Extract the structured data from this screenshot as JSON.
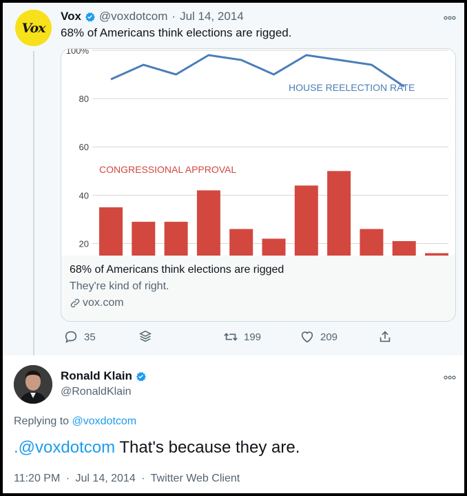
{
  "tweet1": {
    "author_name": "Vox",
    "handle": "@voxdotcom",
    "separator": "·",
    "date": "Jul 14, 2014",
    "avatar_text": "Vox",
    "text": "68% of Americans think elections are rigged.",
    "card": {
      "title": "68% of Americans think elections are rigged",
      "description": "They're kind of right.",
      "domain": "vox.com"
    },
    "actions": {
      "replies": "35",
      "retweets": "199",
      "likes": "209"
    }
  },
  "chart_data": {
    "type": "bar",
    "y_tick_labels": [
      "20",
      "40",
      "60",
      "80",
      "100%"
    ],
    "ylim": [
      15,
      100
    ],
    "bar_series_label": "CONGRESSIONAL APPROVAL",
    "bar_values": [
      35,
      29,
      29,
      42,
      26,
      22,
      44,
      50,
      26,
      21,
      16
    ],
    "line_series_label": "HOUSE REELECTION RATE",
    "line_values": [
      88,
      94,
      90,
      98,
      96,
      90,
      98,
      96,
      94,
      85
    ],
    "colors": {
      "bar": "#d2483f",
      "line": "#4a7db8",
      "grid": "#d6d6d6"
    }
  },
  "tweet2": {
    "author_name": "Ronald Klain",
    "handle": "@RonaldKlain",
    "replying_label": "Replying to",
    "replying_handle": "@voxdotcom",
    "mention": ".@voxdotcom",
    "text": " That's because they are.",
    "time": "11:20 PM",
    "separator": "·",
    "date": "Jul 14, 2014",
    "client": "Twitter Web Client"
  },
  "colors": {
    "accent": "#1d9bf0",
    "verified": "#1d9bf0",
    "vox_yellow": "#f7e11a"
  },
  "icons": [
    "verified-badge-icon",
    "more-options-icon",
    "reply-icon",
    "layers-icon",
    "retweet-icon",
    "like-icon",
    "share-icon",
    "link-icon"
  ]
}
